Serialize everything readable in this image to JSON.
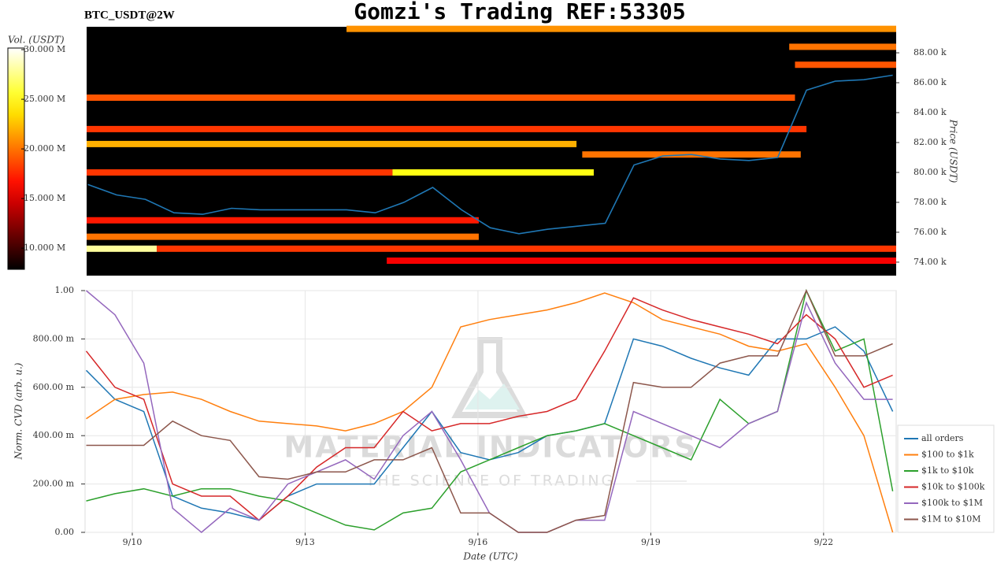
{
  "chart_data": [
    {
      "type": "heatmap",
      "title": "Gomzi's Trading REF:53305",
      "label": "BTC_USDT@2W",
      "ylabel": "Price (USDT)",
      "colormap": "hot",
      "color": "#1f77b4",
      "xlim": [
        9.18,
        23.26
      ],
      "ylim": [
        73100,
        89740
      ],
      "yticks": [
        {
          "value": 74000,
          "label": "74.00 k"
        },
        {
          "value": 76000,
          "label": "76.00 k"
        },
        {
          "value": 78000,
          "label": "78.00 k"
        },
        {
          "value": 80000,
          "label": "80.00 k"
        },
        {
          "value": 82000,
          "label": "82.00 k"
        },
        {
          "value": 84000,
          "label": "84.00 k"
        },
        {
          "value": 86000,
          "label": "86.00 k"
        },
        {
          "value": 88000,
          "label": "88.00 k"
        }
      ],
      "x": [
        9.2,
        9.7,
        10.2,
        10.7,
        11.2,
        11.7,
        12.2,
        12.7,
        13.2,
        13.7,
        14.2,
        14.7,
        15.2,
        15.7,
        16.2,
        16.7,
        17.2,
        17.7,
        18.2,
        18.7,
        19.2,
        19.7,
        20.2,
        20.7,
        21.2,
        21.7,
        22.2,
        22.7,
        23.2
      ],
      "values": [
        79200,
        78500,
        78200,
        77300,
        77200,
        77600,
        77500,
        77500,
        77500,
        77500,
        77300,
        78000,
        79000,
        77500,
        76300,
        75900,
        76200,
        76400,
        76600,
        80500,
        81100,
        81200,
        80900,
        80800,
        81000,
        85500,
        86100,
        86200,
        86500
      ],
      "bands": [
        {
          "price": 89600,
          "start": 13.7,
          "end": 23.26,
          "volume": 21000000
        },
        {
          "price": 88400,
          "start": 21.4,
          "end": 23.26,
          "volume": 20000000
        },
        {
          "price": 87200,
          "start": 21.5,
          "end": 23.26,
          "volume": 19000000
        },
        {
          "price": 85000,
          "start": 9.18,
          "end": 21.5,
          "volume": 19000000
        },
        {
          "price": 82900,
          "start": 9.18,
          "end": 21.7,
          "volume": 18000000
        },
        {
          "price": 81900,
          "start": 9.18,
          "end": 17.7,
          "volume": 22000000
        },
        {
          "price": 81200,
          "start": 17.8,
          "end": 21.6,
          "volume": 20000000
        },
        {
          "price": 80000,
          "start": 9.18,
          "end": 14.5,
          "volume": 18000000
        },
        {
          "price": 80000,
          "start": 14.5,
          "end": 18.0,
          "volume": 25000000
        },
        {
          "price": 76800,
          "start": 9.18,
          "end": 16.0,
          "volume": 17000000
        },
        {
          "price": 75700,
          "start": 9.18,
          "end": 16.0,
          "volume": 20000000
        },
        {
          "price": 74900,
          "start": 9.18,
          "end": 10.4,
          "volume": 28000000
        },
        {
          "price": 74900,
          "start": 10.4,
          "end": 23.26,
          "volume": 18000000
        },
        {
          "price": 74100,
          "start": 14.4,
          "end": 23.26,
          "volume": 16000000
        }
      ],
      "colorbar": {
        "label": "Vol. (USDT)",
        "lim": [
          7870000,
          30160000
        ],
        "ticks": [
          {
            "value": 10000000,
            "label": "10.000 M"
          },
          {
            "value": 15000000,
            "label": "15.000 M"
          },
          {
            "value": 20000000,
            "label": "20.000 M"
          },
          {
            "value": 25000000,
            "label": "25.000 M"
          },
          {
            "value": 30000000,
            "label": "30.000 M"
          }
        ]
      }
    },
    {
      "type": "line",
      "xlabel": "Date (UTC)",
      "ylabel": "Norm. CVD (arb. u.)",
      "watermark": [
        "MATERIAL INDICATORS",
        "THE SCIENCE OF TRADING"
      ],
      "grid": true,
      "legend": "lower right",
      "xlim": [
        9.18,
        23.26
      ],
      "xticks": [
        {
          "value": 10,
          "label": "9/10"
        },
        {
          "value": 13,
          "label": "9/13"
        },
        {
          "value": 16,
          "label": "9/16"
        },
        {
          "value": 19,
          "label": "9/19"
        },
        {
          "value": 22,
          "label": "9/22"
        }
      ],
      "ylim": [
        0,
        1
      ],
      "yticks": [
        {
          "value": 0,
          "label": "0.00"
        },
        {
          "value": 0.2,
          "label": "200.00 m"
        },
        {
          "value": 0.4,
          "label": "400.00 m"
        },
        {
          "value": 0.6,
          "label": "600.00 m"
        },
        {
          "value": 0.8,
          "label": "800.00 m"
        },
        {
          "value": 1,
          "label": "1.00"
        }
      ],
      "x": [
        9.2,
        9.7,
        10.2,
        10.7,
        11.2,
        11.7,
        12.2,
        12.7,
        13.2,
        13.7,
        14.2,
        14.7,
        15.2,
        15.7,
        16.2,
        16.7,
        17.2,
        17.7,
        18.2,
        18.7,
        19.2,
        19.7,
        20.2,
        20.7,
        21.2,
        21.7,
        22.2,
        22.7,
        23.2
      ],
      "series": [
        {
          "name": "all orders",
          "color": "#1f77b4",
          "values": [
            0.67,
            0.55,
            0.5,
            0.15,
            0.1,
            0.08,
            0.05,
            0.15,
            0.2,
            0.2,
            0.2,
            0.35,
            0.5,
            0.33,
            0.3,
            0.33,
            0.4,
            0.42,
            0.45,
            0.8,
            0.77,
            0.72,
            0.68,
            0.65,
            0.8,
            0.8,
            0.85,
            0.75,
            0.5
          ]
        },
        {
          "name": "$100 to $1k",
          "color": "#ff7f0e",
          "values": [
            0.47,
            0.55,
            0.57,
            0.58,
            0.55,
            0.5,
            0.46,
            0.45,
            0.44,
            0.42,
            0.45,
            0.5,
            0.6,
            0.85,
            0.88,
            0.9,
            0.92,
            0.95,
            0.99,
            0.95,
            0.88,
            0.85,
            0.82,
            0.77,
            0.75,
            0.78,
            0.6,
            0.4,
            0.0
          ]
        },
        {
          "name": "$1k to $10k",
          "color": "#2ca02c",
          "values": [
            0.13,
            0.16,
            0.18,
            0.15,
            0.18,
            0.18,
            0.15,
            0.13,
            0.08,
            0.03,
            0.01,
            0.08,
            0.1,
            0.25,
            0.3,
            0.35,
            0.4,
            0.42,
            0.45,
            0.4,
            0.35,
            0.3,
            0.55,
            0.45,
            0.5,
            1.0,
            0.75,
            0.8,
            0.17
          ]
        },
        {
          "name": "$10k to $100k",
          "color": "#d62728",
          "values": [
            0.75,
            0.6,
            0.55,
            0.2,
            0.15,
            0.15,
            0.05,
            0.15,
            0.27,
            0.35,
            0.35,
            0.5,
            0.42,
            0.45,
            0.45,
            0.48,
            0.5,
            0.55,
            0.75,
            0.97,
            0.92,
            0.88,
            0.85,
            0.82,
            0.78,
            0.9,
            0.8,
            0.6,
            0.65
          ]
        },
        {
          "name": "$100k to $1M",
          "color": "#9467bd",
          "values": [
            1.0,
            0.9,
            0.7,
            0.1,
            0.0,
            0.1,
            0.05,
            0.2,
            0.25,
            0.3,
            0.22,
            0.4,
            0.5,
            0.3,
            0.08,
            0.0,
            0.0,
            0.05,
            0.05,
            0.5,
            0.45,
            0.4,
            0.35,
            0.45,
            0.5,
            0.95,
            0.7,
            0.55,
            0.55
          ]
        },
        {
          "name": "$1M to $10M",
          "color": "#8c564b",
          "values": [
            0.36,
            0.36,
            0.36,
            0.46,
            0.4,
            0.38,
            0.23,
            0.22,
            0.25,
            0.25,
            0.3,
            0.3,
            0.35,
            0.08,
            0.08,
            0.0,
            0.0,
            0.05,
            0.07,
            0.62,
            0.6,
            0.6,
            0.7,
            0.73,
            0.73,
            1.0,
            0.73,
            0.73,
            0.78
          ]
        }
      ]
    }
  ]
}
